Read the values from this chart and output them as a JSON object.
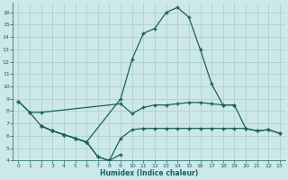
{
  "xlabel": "Humidex (Indice chaleur)",
  "bg_color": "#cde8e8",
  "grid_color": "#a8cccc",
  "line_color": "#1a6060",
  "xlim": [
    -0.5,
    23.5
  ],
  "ylim": [
    4,
    16.8
  ],
  "yticks": [
    4,
    5,
    6,
    7,
    8,
    9,
    10,
    11,
    12,
    13,
    14,
    15,
    16
  ],
  "xticks": [
    0,
    1,
    2,
    3,
    4,
    5,
    6,
    7,
    8,
    9,
    10,
    11,
    12,
    13,
    14,
    15,
    16,
    17,
    18,
    19,
    20,
    21,
    22,
    23
  ],
  "curve_peak_x": [
    0,
    1,
    2,
    3,
    4,
    5,
    6,
    9,
    10,
    11,
    12,
    13,
    14,
    15,
    16,
    17,
    18,
    19,
    20,
    21,
    22,
    23
  ],
  "curve_peak_y": [
    8.8,
    7.9,
    6.8,
    6.4,
    6.1,
    5.8,
    5.5,
    9.0,
    12.2,
    14.3,
    14.7,
    16.0,
    16.4,
    15.6,
    13.0,
    10.2,
    8.5,
    8.5,
    6.6,
    6.4,
    6.5,
    6.2
  ],
  "curve_top_x": [
    0,
    1,
    2,
    9,
    10,
    11,
    12,
    13,
    14,
    15,
    16,
    17,
    18,
    19
  ],
  "curve_top_y": [
    8.8,
    7.9,
    7.9,
    8.6,
    7.8,
    8.3,
    8.5,
    8.5,
    8.6,
    8.7,
    8.7,
    8.6,
    8.5,
    8.5
  ],
  "curve_dip_x": [
    2,
    3,
    4,
    5,
    6,
    7,
    8,
    9
  ],
  "curve_dip_y": [
    6.8,
    6.4,
    6.1,
    5.8,
    5.5,
    4.3,
    4.0,
    4.5
  ],
  "curve_flat_x": [
    2,
    3,
    4,
    5,
    6,
    7,
    8,
    9,
    10,
    11,
    12,
    13,
    14,
    15,
    16,
    17,
    18,
    19,
    20,
    21,
    22,
    23
  ],
  "curve_flat_y": [
    6.8,
    6.4,
    6.1,
    5.8,
    5.5,
    4.3,
    4.0,
    5.8,
    6.5,
    6.6,
    6.6,
    6.6,
    6.6,
    6.6,
    6.6,
    6.6,
    6.6,
    6.6,
    6.6,
    6.4,
    6.5,
    6.2
  ]
}
